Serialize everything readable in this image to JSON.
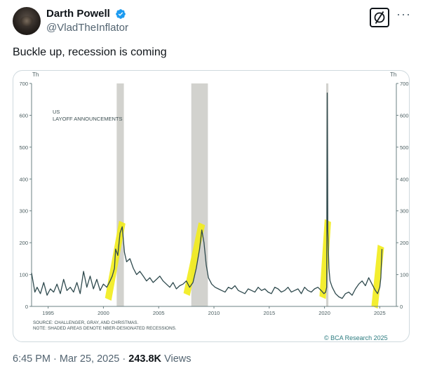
{
  "author": {
    "display_name": "Darth Powell",
    "handle": "@VladTheInflator",
    "verified": true
  },
  "tweet": {
    "text": "Buckle up, recession is coming"
  },
  "footer": {
    "time": "6:45 PM",
    "separator": "·",
    "date": "Mar 25, 2025",
    "views_count": "243.8K",
    "views_label": "Views"
  },
  "colors": {
    "verified_blue": "#1d9bf0",
    "line": "#2f4a4e",
    "recession_band": "#d2d2ce",
    "highlight": "#f2ec1a"
  },
  "chart_data": {
    "type": "line",
    "title": "US LAYOFF ANNOUNCEMENTS",
    "title_lines": [
      "US",
      "LAYOFF ANNOUNCEMENTS"
    ],
    "unit_label": "Th",
    "ylim": [
      0,
      700
    ],
    "yticks": [
      0,
      100,
      200,
      300,
      400,
      500,
      600,
      700
    ],
    "ytick_labels": [
      "0",
      "100",
      "200",
      "300",
      "400",
      "500",
      "600",
      "700"
    ],
    "xlim": [
      1993.5,
      2026.5
    ],
    "xticks": [
      1995,
      2000,
      2005,
      2010,
      2015,
      2020,
      2025
    ],
    "xtick_labels": [
      "1995",
      "2000",
      "2005",
      "2010",
      "2015",
      "2020",
      "2025"
    ],
    "recessions": [
      [
        2001.2,
        2001.85
      ],
      [
        2007.95,
        2009.45
      ],
      [
        2020.15,
        2020.35
      ]
    ],
    "highlights": [
      {
        "start": 2000.4,
        "end": 2001.8,
        "low": 40,
        "high": 260
      },
      {
        "start": 2007.5,
        "end": 2009.0,
        "low": 55,
        "high": 255
      },
      {
        "start": 2019.8,
        "end": 2020.4,
        "low": 45,
        "high": 265
      },
      {
        "start": 2024.5,
        "end": 2025.2,
        "low": 15,
        "high": 185
      }
    ],
    "series": [
      {
        "x": [
          1993.5,
          1993.8,
          1994.0,
          1994.3,
          1994.6,
          1994.9,
          1995.2,
          1995.5,
          1995.8,
          1996.1,
          1996.4,
          1996.7,
          1997.0,
          1997.3,
          1997.6,
          1997.9,
          1998.2,
          1998.5,
          1998.8,
          1999.1,
          1999.4,
          1999.7,
          2000.0,
          2000.3,
          2000.6,
          2000.8,
          2001.0,
          2001.1,
          2001.3,
          2001.5,
          2001.7,
          2001.9,
          2002.1,
          2002.4,
          2002.7,
          2003.0,
          2003.3,
          2003.6,
          2003.9,
          2004.2,
          2004.5,
          2004.8,
          2005.1,
          2005.4,
          2005.7,
          2006.0,
          2006.3,
          2006.6,
          2006.9,
          2007.2,
          2007.5,
          2007.8,
          2008.1,
          2008.4,
          2008.7,
          2008.9,
          2009.1,
          2009.3,
          2009.5,
          2009.8,
          2010.1,
          2010.4,
          2010.7,
          2011.0,
          2011.3,
          2011.6,
          2011.9,
          2012.2,
          2012.5,
          2012.8,
          2013.1,
          2013.4,
          2013.7,
          2014.0,
          2014.3,
          2014.6,
          2014.9,
          2015.2,
          2015.5,
          2015.8,
          2016.1,
          2016.4,
          2016.7,
          2017.0,
          2017.3,
          2017.6,
          2017.9,
          2018.2,
          2018.5,
          2018.8,
          2019.1,
          2019.4,
          2019.7,
          2019.95,
          2020.1,
          2020.2,
          2020.25,
          2020.3,
          2020.4,
          2020.5,
          2020.7,
          2021.0,
          2021.3,
          2021.6,
          2021.9,
          2022.2,
          2022.5,
          2022.8,
          2023.1,
          2023.4,
          2023.7,
          2024.0,
          2024.3,
          2024.6,
          2024.8,
          2025.0,
          2025.1,
          2025.2
        ],
        "values": [
          105,
          45,
          60,
          40,
          75,
          35,
          55,
          45,
          70,
          40,
          85,
          50,
          60,
          45,
          75,
          40,
          110,
          60,
          95,
          55,
          85,
          50,
          70,
          60,
          80,
          95,
          120,
          180,
          160,
          230,
          250,
          170,
          140,
          150,
          120,
          100,
          110,
          95,
          80,
          90,
          75,
          85,
          95,
          80,
          70,
          60,
          75,
          55,
          65,
          70,
          80,
          60,
          75,
          120,
          180,
          240,
          200,
          130,
          90,
          70,
          60,
          55,
          50,
          45,
          60,
          55,
          65,
          50,
          45,
          40,
          55,
          50,
          45,
          60,
          50,
          55,
          45,
          40,
          60,
          55,
          45,
          50,
          60,
          45,
          50,
          55,
          40,
          60,
          50,
          45,
          55,
          60,
          50,
          40,
          45,
          60,
          670,
          240,
          120,
          80,
          60,
          40,
          30,
          25,
          40,
          45,
          35,
          55,
          70,
          80,
          65,
          90,
          70,
          50,
          40,
          60,
          90,
          180
        ]
      }
    ],
    "source_lines": [
      "SOURCE: CHALLENGER, GRAY, AND CHRISTMAS.",
      "NOTE: SHADED AREAS DENOTE NBER-DESIGNATED RECESSIONS."
    ],
    "credit": "© BCA Research 2025",
    "grid": false,
    "legend": "none"
  }
}
